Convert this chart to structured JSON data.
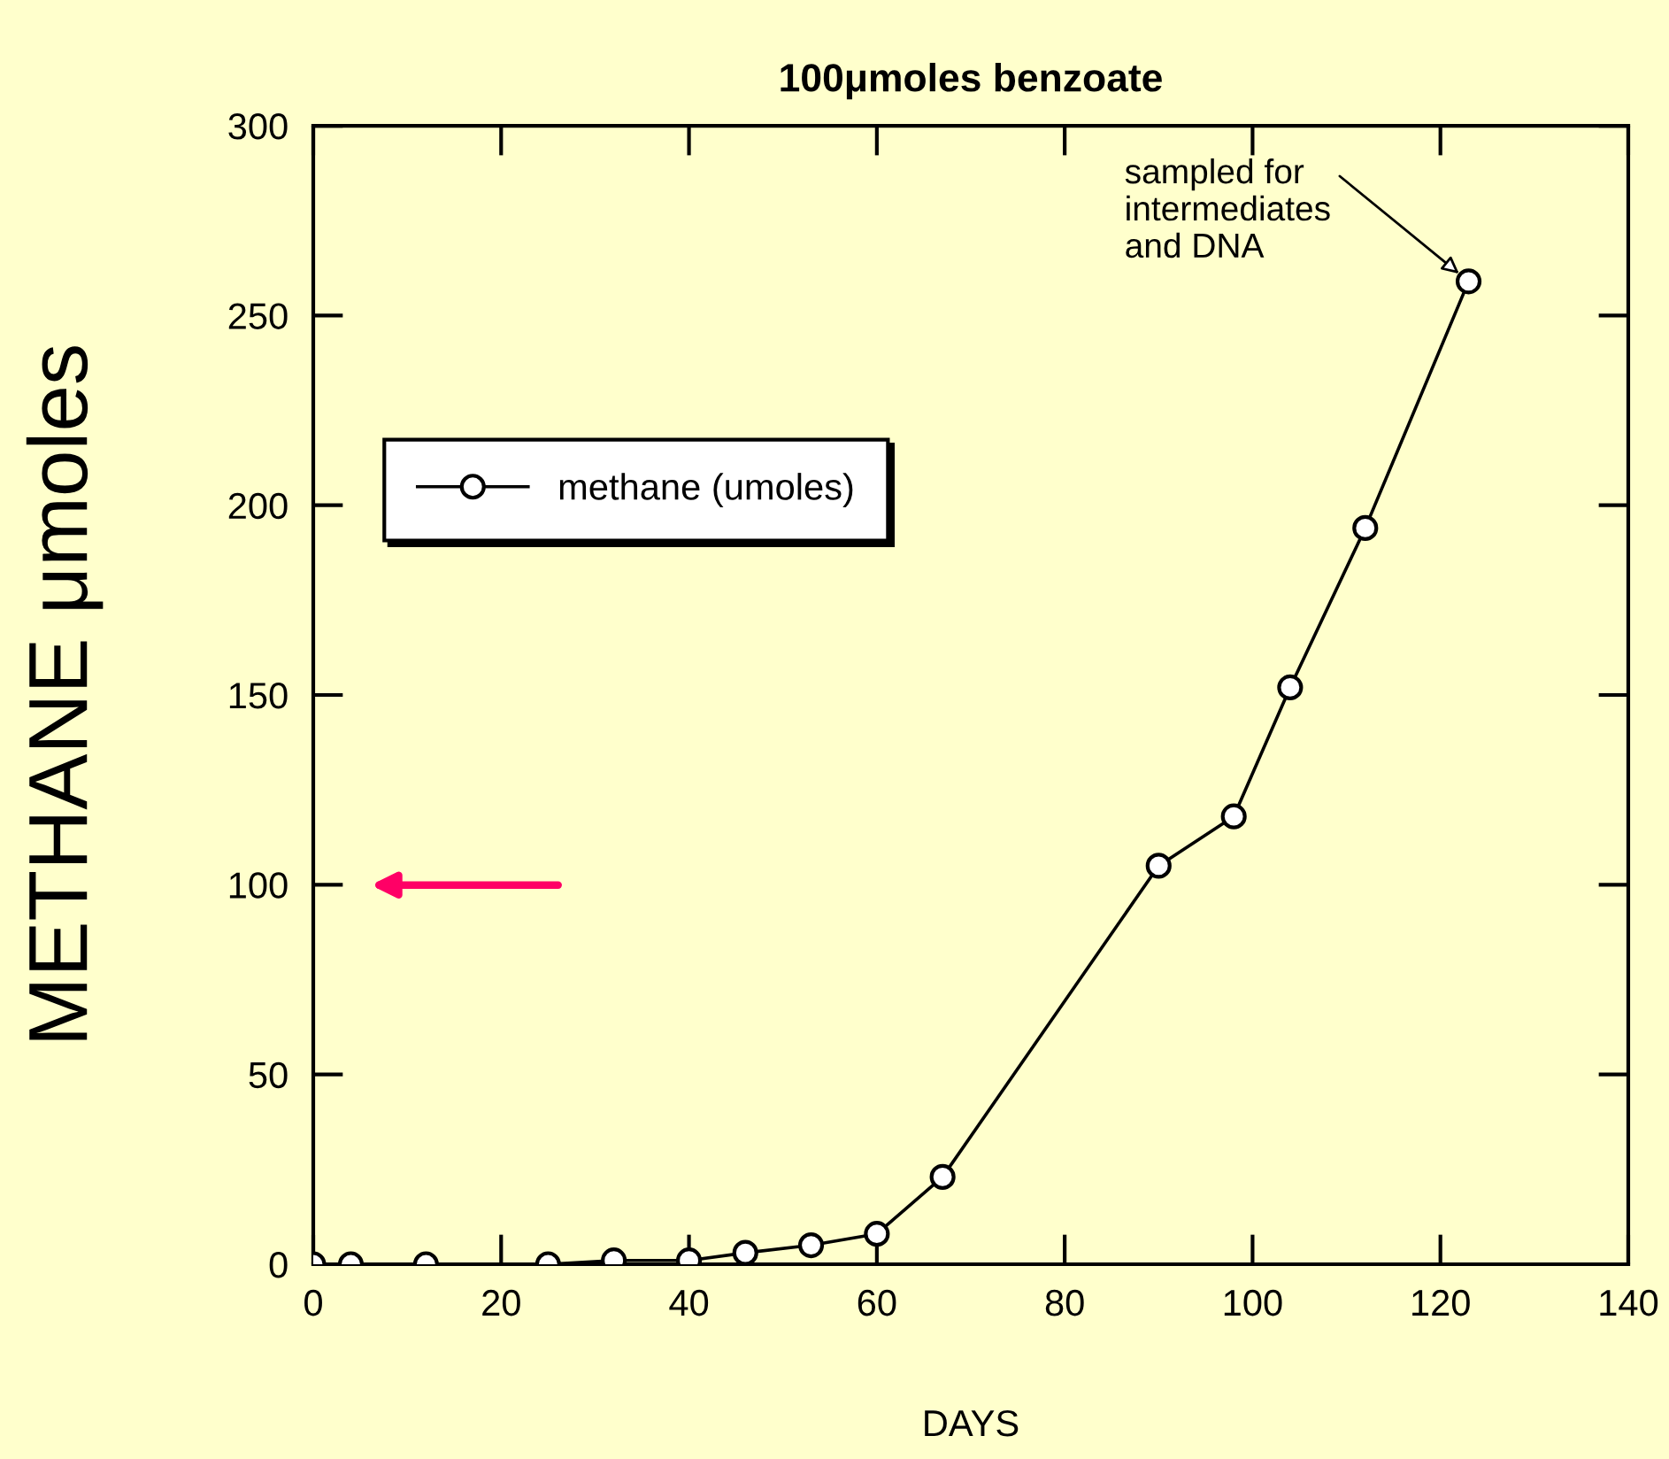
{
  "chart_data": {
    "type": "line",
    "title": "100μmoles benzoate",
    "xlabel": "DAYS",
    "ylabel": "METHANE μmoles",
    "x": [
      0,
      4,
      12,
      25,
      32,
      40,
      46,
      53,
      60,
      67,
      90,
      98,
      104,
      112,
      123
    ],
    "series": [
      {
        "name": "methane (umoles)",
        "color": "#000000",
        "values": [
          0,
          0,
          0,
          0,
          1,
          1,
          3,
          5,
          8,
          23,
          105,
          118,
          152,
          194,
          259
        ]
      }
    ],
    "xlim": [
      0,
      140
    ],
    "xticks": [
      0,
      20,
      40,
      60,
      80,
      100,
      120,
      140
    ],
    "ylim": [
      0,
      300
    ],
    "yticks": [
      0,
      50,
      100,
      150,
      200,
      250,
      300
    ],
    "annotations": [
      {
        "text": "sampled for\nintermediates\nand DNA",
        "x": 123,
        "y": 259
      }
    ],
    "marker": "circle",
    "line_style": "solid",
    "legend": "left",
    "grid": false
  }
}
